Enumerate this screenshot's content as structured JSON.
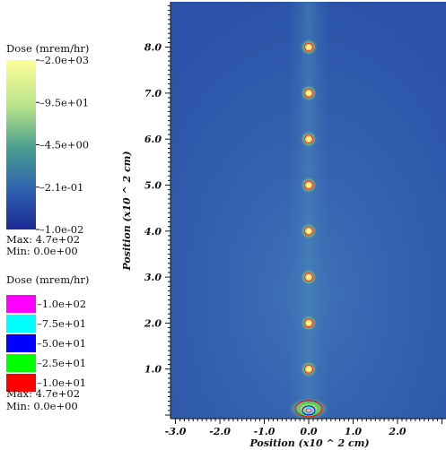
{
  "chart_data": {
    "type": "heatmap",
    "title": "",
    "xlabel": "Position (x10 ^ 2 cm)",
    "ylabel": "Position (x10 ^ 2 cm)",
    "xlim": [
      -3.0,
      3.0
    ],
    "ylim": [
      0.0,
      9.0
    ],
    "x_ticks": [
      "-3.0",
      "-2.0",
      "-1.0",
      "0.0",
      "1.0",
      "2.0"
    ],
    "y_ticks": [
      "1.0",
      "2.0",
      "3.0",
      "4.0",
      "5.0",
      "6.0",
      "7.0",
      "8.0"
    ],
    "sources": [
      {
        "x": 0.0,
        "y": 0.1
      },
      {
        "x": 0.0,
        "y": 1.0
      },
      {
        "x": 0.0,
        "y": 2.0
      },
      {
        "x": 0.0,
        "y": 3.0
      },
      {
        "x": 0.0,
        "y": 4.0
      },
      {
        "x": 0.0,
        "y": 5.0
      },
      {
        "x": 0.0,
        "y": 6.0
      },
      {
        "x": 0.0,
        "y": 7.0
      },
      {
        "x": 0.0,
        "y": 8.0
      }
    ],
    "colorbar": {
      "title": "Dose (mrem/hr)",
      "scale": "log",
      "labels": [
        "2.0e+03",
        "9.5e+01",
        "4.5e+00",
        "2.1e-01",
        "1.0e-02"
      ],
      "max_label": "Max: 4.7e+02",
      "min_label": "Min: 0.0e+00"
    },
    "contour_legend": {
      "title": "Dose (mrem/hr)",
      "levels": [
        {
          "label": "1.0e+02",
          "color": "#ff00ff"
        },
        {
          "label": "7.5e+01",
          "color": "#00ffff"
        },
        {
          "label": "5.0e+01",
          "color": "#0000ff"
        },
        {
          "label": "2.5e+01",
          "color": "#00ff00"
        },
        {
          "label": "1.0e+01",
          "color": "#ff0000"
        }
      ],
      "max_label": "Max: 4.7e+02",
      "min_label": "Min: 0.0e+00"
    },
    "colors": {
      "background": "#2e57ad",
      "colormap": [
        "#ffff99",
        "#b5e28a",
        "#4a9e8e",
        "#2f63b0",
        "#1d2a96"
      ]
    }
  }
}
